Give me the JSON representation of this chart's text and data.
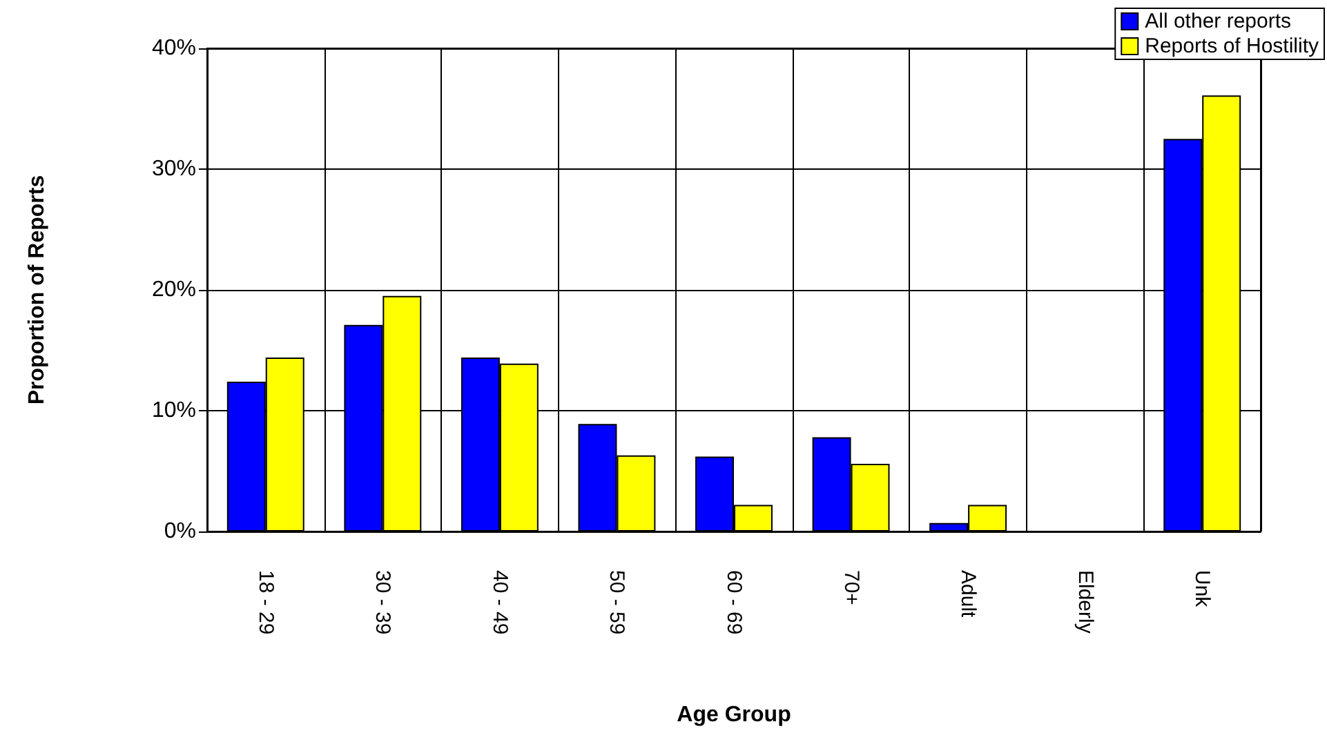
{
  "chart_data": {
    "type": "bar",
    "xlabel": "Age Group",
    "ylabel": "Proportion of Reports",
    "categories": [
      "18 - 29",
      "30 - 39",
      "40 - 49",
      "50 - 59",
      "60 - 69",
      "70+",
      "Adult",
      "Elderly",
      "Unk"
    ],
    "series": [
      {
        "name": "All other reports",
        "color": "#0000ff",
        "values": [
          12.4,
          17.1,
          14.4,
          8.9,
          6.2,
          7.8,
          0.7,
          0,
          32.5
        ]
      },
      {
        "name": "Reports of Hostility",
        "color": "#ffff00",
        "values": [
          14.4,
          19.5,
          13.9,
          6.3,
          2.2,
          5.6,
          2.2,
          0,
          36.1
        ]
      }
    ],
    "ylim": [
      0,
      40
    ],
    "yticks": [
      {
        "value": 0,
        "label": "0%"
      },
      {
        "value": 10,
        "label": "10%"
      },
      {
        "value": 20,
        "label": "20%"
      },
      {
        "value": 30,
        "label": "30%"
      },
      {
        "value": 40,
        "label": "40%"
      }
    ],
    "grid": true,
    "legend": "top right"
  }
}
